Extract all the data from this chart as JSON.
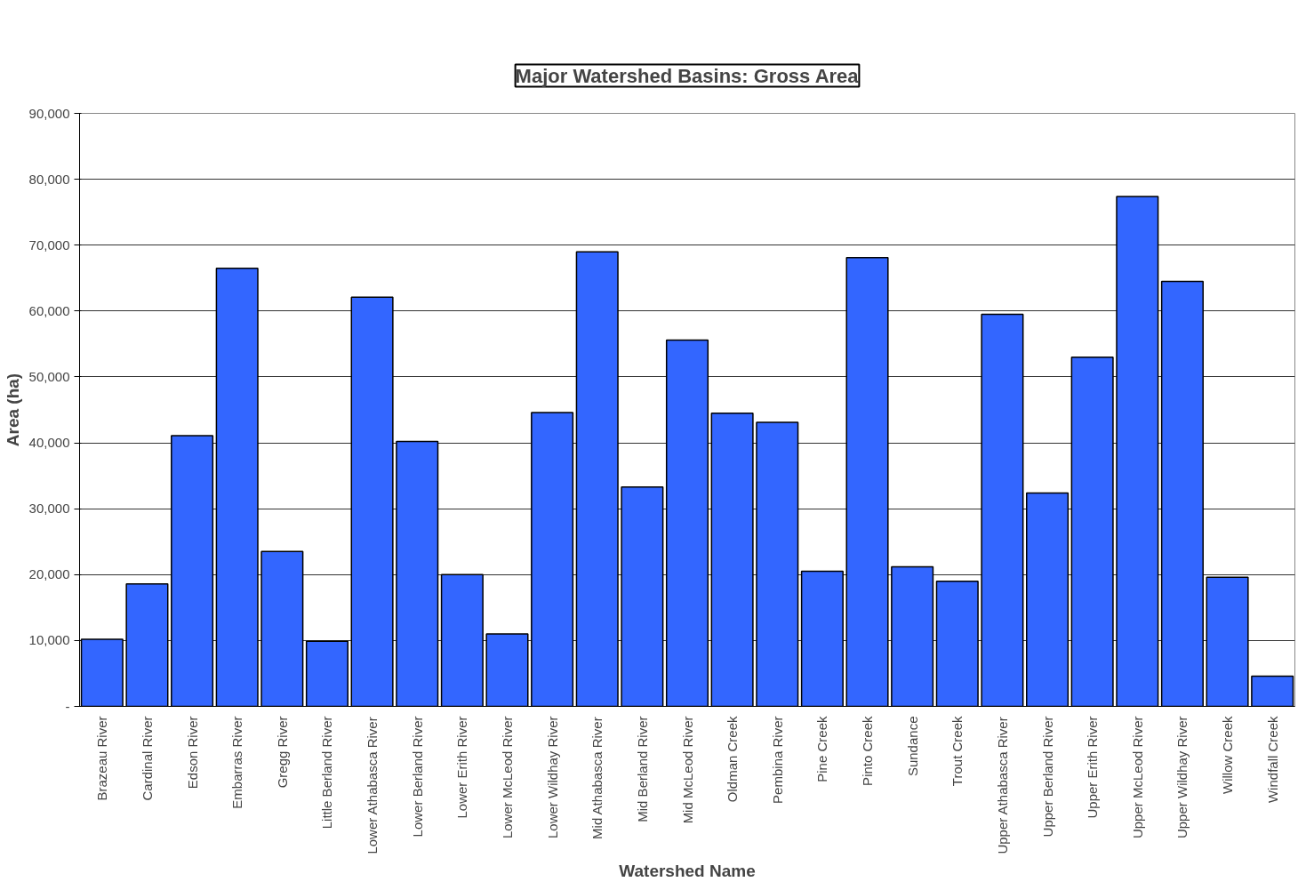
{
  "chart_data": {
    "type": "bar",
    "title": "Major Watershed Basins: Gross Area",
    "xlabel": "Watershed Name",
    "ylabel": "Area (ha)",
    "categories": [
      "Brazeau River",
      "Cardinal River",
      "Edson River",
      "Embarras River",
      "Gregg River",
      "Little Berland River",
      "Lower Athabasca River",
      "Lower Berland River",
      "Lower Erith River",
      "Lower McLeod River",
      "Lower Wildhay River",
      "Mid Athabasca River",
      "Mid Berland River",
      "Mid McLeod River",
      "Oldman Creek",
      "Pembina River",
      "Pine Creek",
      "Pinto Creek",
      "Sundance",
      "Trout Creek",
      "Upper Athabasca River",
      "Upper Berland River",
      "Upper Erith River",
      "Upper McLeod River",
      "Upper Wildhay River",
      "Willow Creek",
      "Windfall Creek"
    ],
    "values": [
      10200,
      18600,
      41100,
      66500,
      23500,
      9900,
      62100,
      40200,
      20000,
      11000,
      44600,
      69000,
      33300,
      55600,
      44500,
      43100,
      20500,
      68100,
      21200,
      19000,
      59500,
      32400,
      53000,
      77400,
      64500,
      19600,
      4600
    ],
    "color": "#3366ff",
    "ylim": [
      0,
      90000
    ],
    "yticks": [
      {
        "value": 0,
        "label": "-"
      },
      {
        "value": 10000,
        "label": "10,000"
      },
      {
        "value": 20000,
        "label": "20,000"
      },
      {
        "value": 30000,
        "label": "30,000"
      },
      {
        "value": 40000,
        "label": "40,000"
      },
      {
        "value": 50000,
        "label": "50,000"
      },
      {
        "value": 60000,
        "label": "60,000"
      },
      {
        "value": 70000,
        "label": "70,000"
      },
      {
        "value": 80000,
        "label": "80,000"
      },
      {
        "value": 90000,
        "label": "90,000"
      }
    ],
    "grid": "y"
  }
}
